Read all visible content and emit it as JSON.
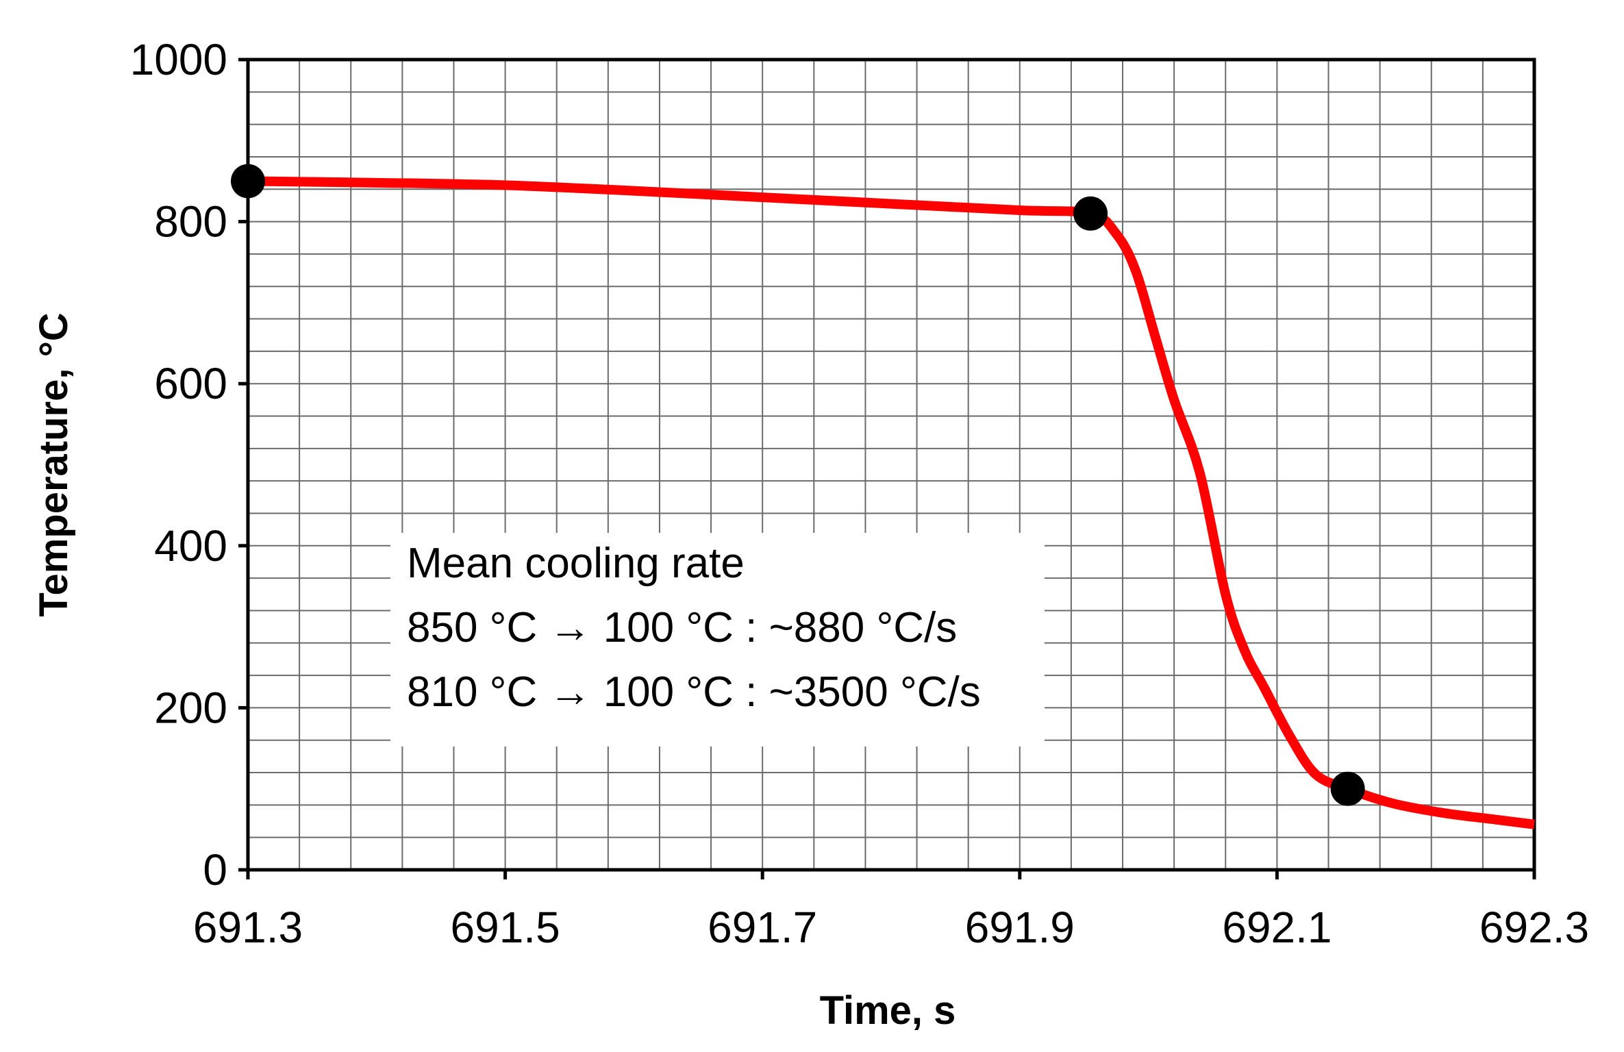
{
  "chart_data": {
    "type": "line",
    "title": "",
    "xlabel": "Time, s",
    "ylabel": "Temperature, °C",
    "xlim": [
      691.3,
      692.3
    ],
    "ylim": [
      0,
      1000
    ],
    "x_ticks": [
      "691.3",
      "691.5",
      "691.7",
      "691.9",
      "692.1",
      "692.3"
    ],
    "x_tick_values": [
      691.3,
      691.5,
      691.7,
      691.9,
      692.1,
      692.3
    ],
    "y_ticks": [
      "0",
      "200",
      "400",
      "600",
      "800",
      "1000"
    ],
    "y_tick_values": [
      0,
      200,
      400,
      600,
      800,
      1000
    ],
    "minor_grid_x_step": 0.04,
    "minor_grid_y_step": 40,
    "grid": true,
    "series": [
      {
        "color": "#ff0000",
        "x": [
          691.3,
          691.4,
          691.5,
          691.6,
          691.7,
          691.8,
          691.9,
          691.955,
          691.975,
          691.99,
          692.005,
          692.02,
          692.04,
          692.06,
          692.075,
          692.09,
          692.11,
          692.13,
          692.155,
          692.19,
          692.23,
          692.27,
          692.3
        ],
        "y": [
          850,
          848,
          845,
          838,
          830,
          822,
          814,
          810,
          785,
          740,
          660,
          580,
          490,
          340,
          270,
          225,
          165,
          118,
          100,
          82,
          70,
          62,
          56
        ]
      }
    ],
    "markers": {
      "color": "#000000",
      "points": [
        {
          "x": 691.3,
          "y": 850
        },
        {
          "x": 691.955,
          "y": 810
        },
        {
          "x": 692.155,
          "y": 100
        }
      ]
    },
    "annotation": {
      "lines": [
        "Mean cooling rate",
        "850 °C → 100 °C : ~880 °C/s",
        "810 °C → 100 °C : ~3500 °C/s"
      ]
    }
  }
}
